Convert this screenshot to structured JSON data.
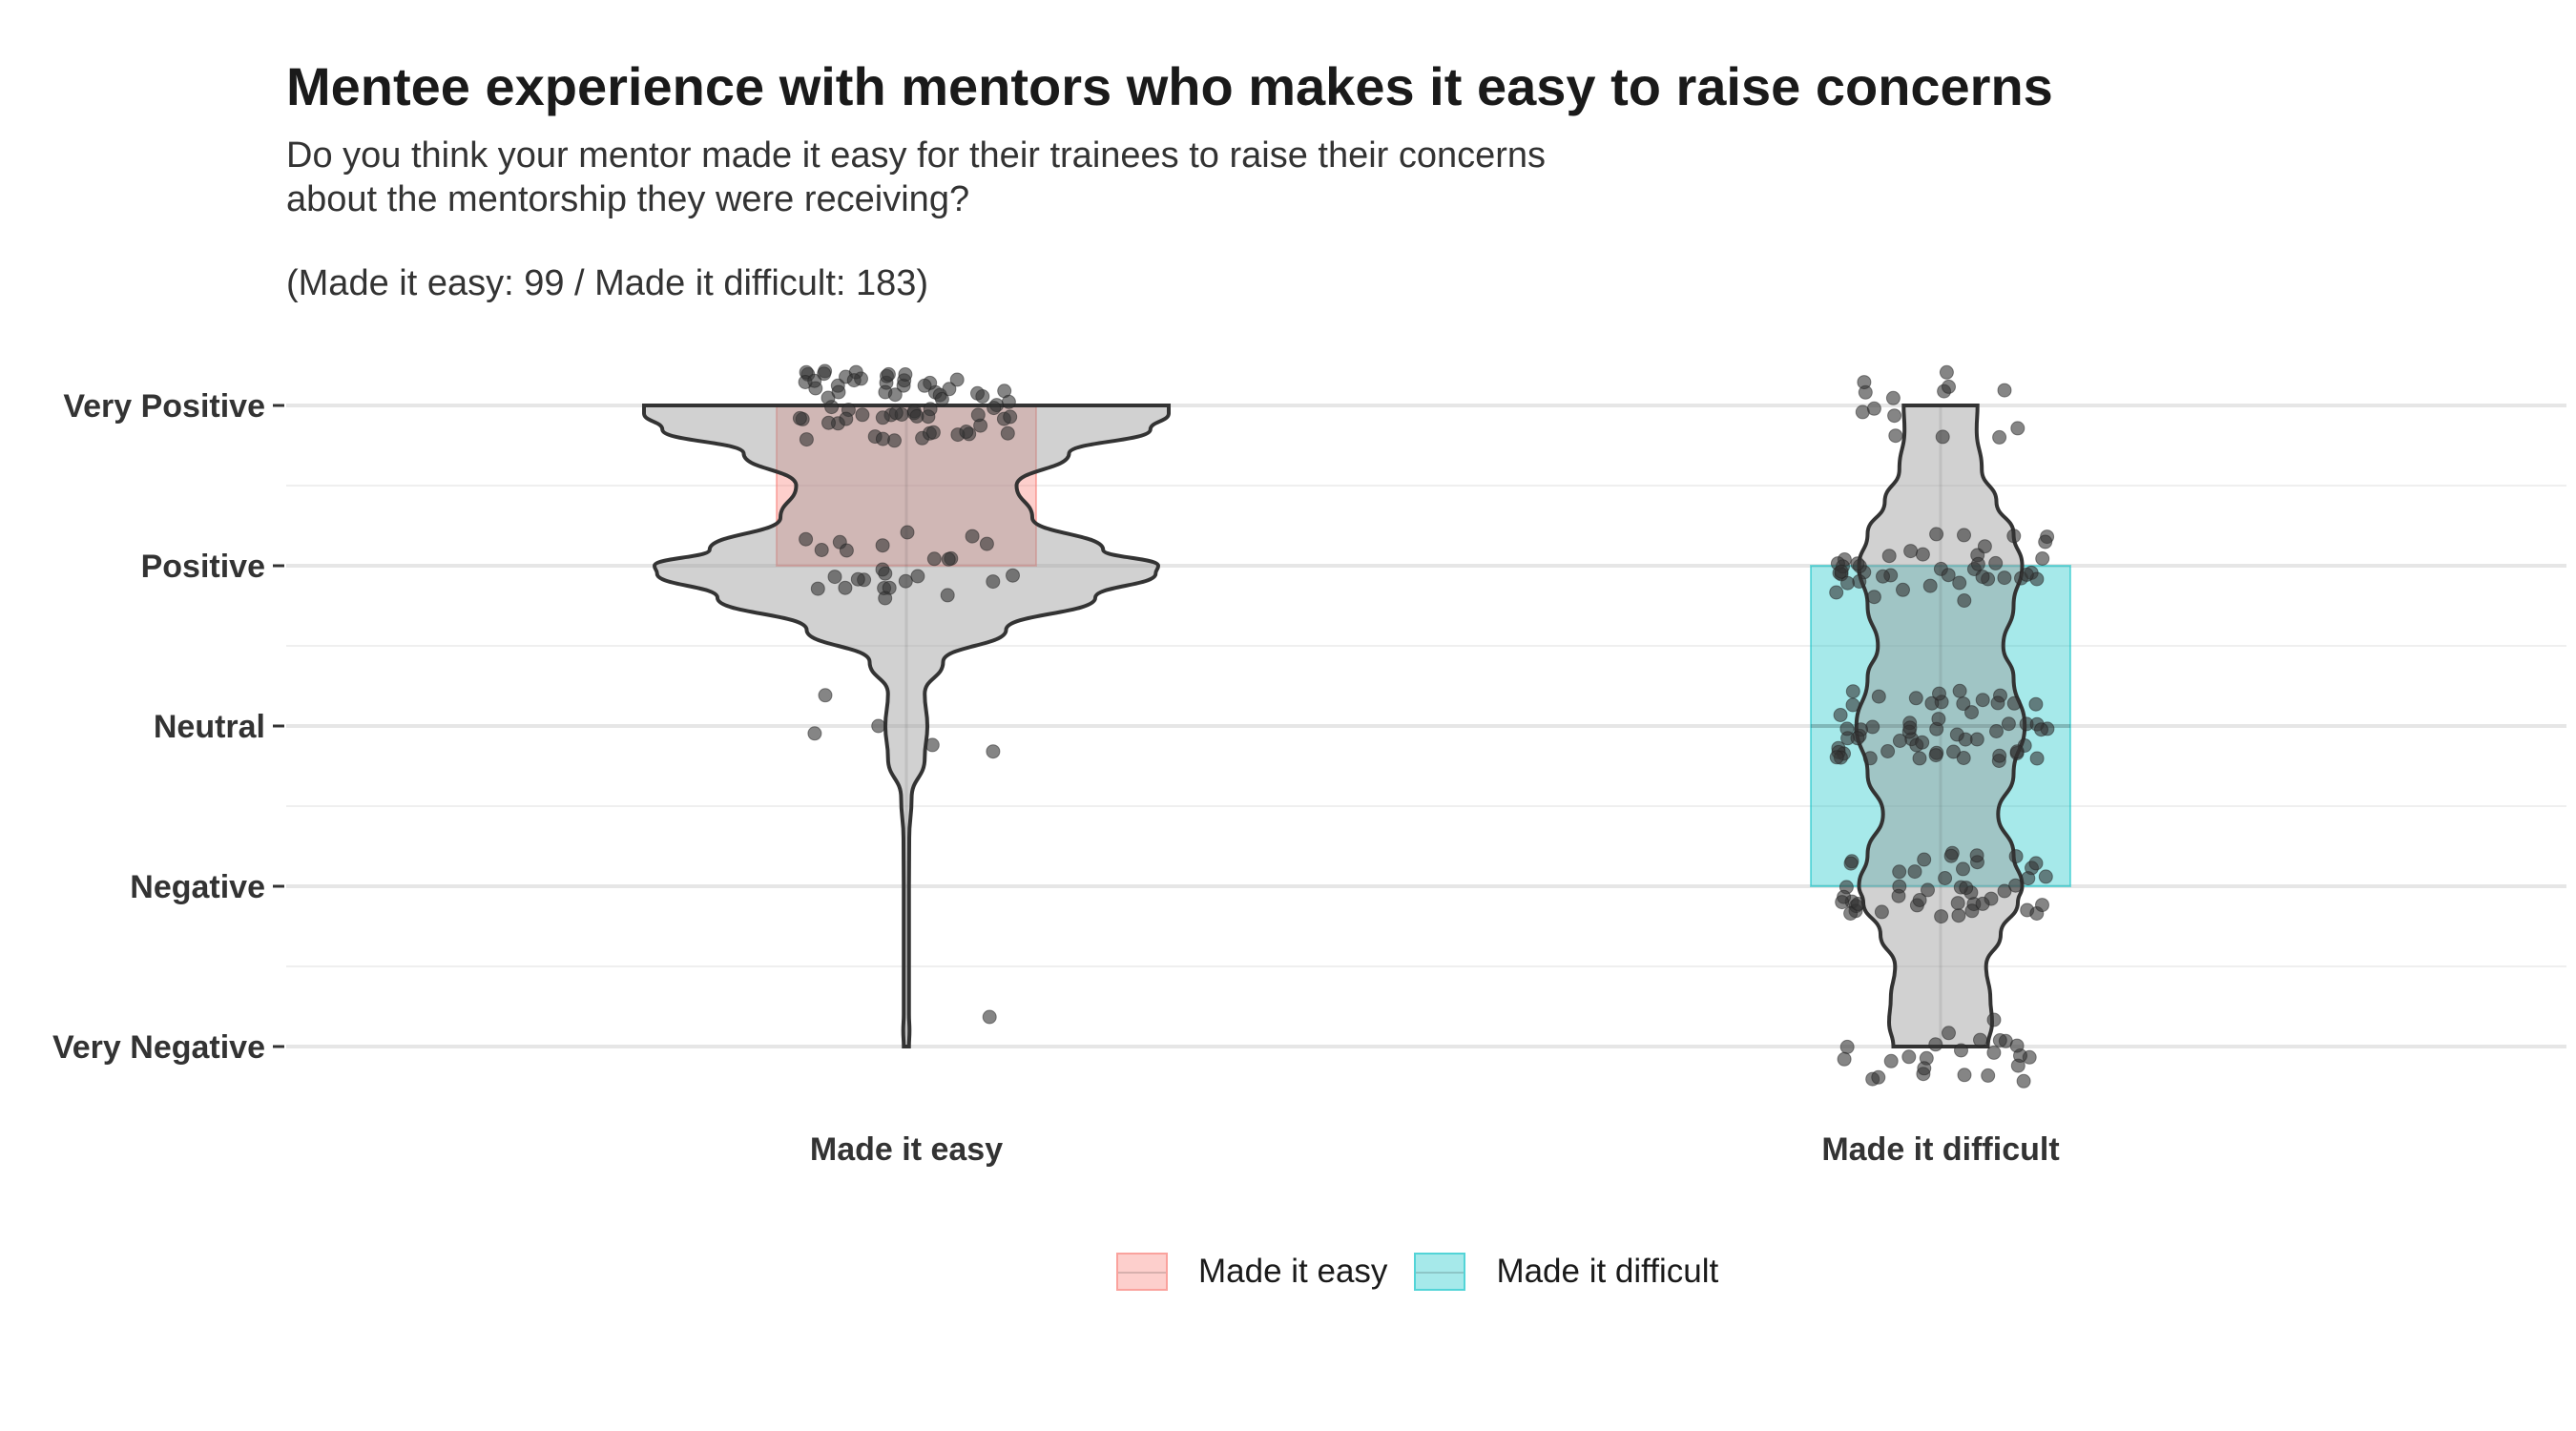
{
  "title": "Mentee experience with mentors who makes it easy to raise concerns",
  "subtitle_lines": [
    "Do you think your mentor made it easy for their trainees to raise their concerns",
    "about the mentorship they were receiving?"
  ],
  "counts_note": "(Made it easy: 99 / Made it difficult: 183)",
  "colors": {
    "easy": "#F8766D",
    "difficult": "#00BFC4",
    "violin_fill": "#999999",
    "violin_stroke": "#333333",
    "point": "#333333",
    "grid": "#e6e6e6"
  },
  "chart_data": {
    "type": "violin",
    "title": "Mentee experience with mentors who makes it easy to raise concerns",
    "y_levels": [
      "Very Negative",
      "Negative",
      "Neutral",
      "Positive",
      "Very Positive"
    ],
    "y_values": [
      1,
      2,
      3,
      4,
      5
    ],
    "ylim": [
      0.9,
      5.3
    ],
    "categories": [
      "Made it easy",
      "Made it difficult"
    ],
    "legend": {
      "position": "bottom",
      "entries": [
        "Made it easy",
        "Made it difficult"
      ]
    },
    "series": [
      {
        "name": "Made it easy",
        "n": 99,
        "box": {
          "q1": 4,
          "median": 5,
          "q3": 5
        },
        "violin_density": [
          [
            1.0,
            0.01
          ],
          [
            1.1,
            0.012
          ],
          [
            1.2,
            0.01
          ],
          [
            1.5,
            0.01
          ],
          [
            2.0,
            0.01
          ],
          [
            2.3,
            0.011
          ],
          [
            2.55,
            0.02
          ],
          [
            2.8,
            0.07
          ],
          [
            3.0,
            0.08
          ],
          [
            3.2,
            0.07
          ],
          [
            3.4,
            0.14
          ],
          [
            3.6,
            0.38
          ],
          [
            3.8,
            0.72
          ],
          [
            3.95,
            0.95
          ],
          [
            4.0,
            0.96
          ],
          [
            4.1,
            0.75
          ],
          [
            4.3,
            0.48
          ],
          [
            4.5,
            0.42
          ],
          [
            4.7,
            0.62
          ],
          [
            4.85,
            0.93
          ],
          [
            4.95,
            1.0
          ],
          [
            5.0,
            1.0
          ]
        ],
        "jitter_counts": {
          "Very Positive": 67,
          "Positive": 26,
          "Neutral": 5,
          "Very Negative": 1
        }
      },
      {
        "name": "Made it difficult",
        "n": 183,
        "box": {
          "q1": 2,
          "median": 3,
          "q3": 4
        },
        "violin_density": [
          [
            1.0,
            0.55
          ],
          [
            1.15,
            0.6
          ],
          [
            1.3,
            0.58
          ],
          [
            1.5,
            0.53
          ],
          [
            1.7,
            0.7
          ],
          [
            1.9,
            0.9
          ],
          [
            2.0,
            0.95
          ],
          [
            2.2,
            0.85
          ],
          [
            2.45,
            0.67
          ],
          [
            2.7,
            0.85
          ],
          [
            3.0,
            0.98
          ],
          [
            3.3,
            0.85
          ],
          [
            3.5,
            0.73
          ],
          [
            3.75,
            0.85
          ],
          [
            4.0,
            0.95
          ],
          [
            4.2,
            0.85
          ],
          [
            4.4,
            0.65
          ],
          [
            4.6,
            0.48
          ],
          [
            4.85,
            0.42
          ],
          [
            5.0,
            0.43
          ]
        ],
        "jitter_counts": {
          "Very Positive": 14,
          "Positive": 42,
          "Neutral": 58,
          "Negative": 45,
          "Very Negative": 24
        }
      }
    ]
  }
}
